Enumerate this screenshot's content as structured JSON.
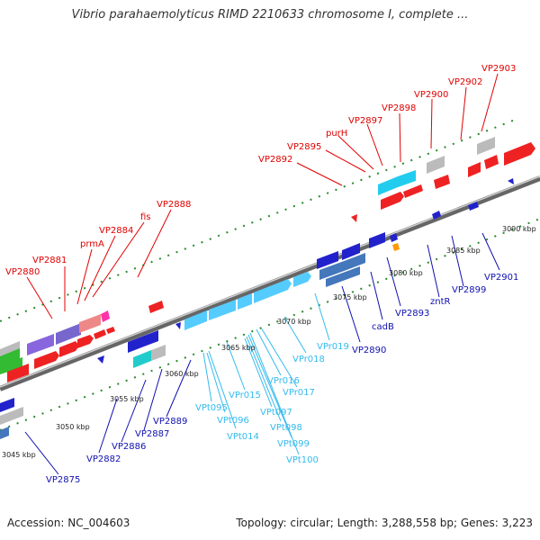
{
  "title": "Vibrio parahaemolyticus RIMD 2210633 chromosome I, complete ...",
  "footer": {
    "accession": "Accession: NC_004603",
    "summary": "Topology: circular; Length: 3,288,558 bp; Genes: 3,223"
  },
  "colors": {
    "upper_labels": "#e00000",
    "lower_labels": "#1010b0",
    "rna_labels": "#33bbee",
    "backbone": "#888888",
    "ticks": "#2a8a2a"
  },
  "scale_ticks": [
    "3045 kbp",
    "3050 kbp",
    "3055 kbp",
    "3060 kbp",
    "3065 kbp",
    "3070 kbp",
    "3075 kbp",
    "3080 kbp",
    "3085 kbp",
    "3090 kbp"
  ],
  "upper_labels": [
    "VP2880",
    "VP2881",
    "prmA",
    "VP2884",
    "fis",
    "VP2888",
    "VP2892",
    "VP2895",
    "purH",
    "VP2897",
    "VP2898",
    "VP2900",
    "VP2902",
    "VP2903"
  ],
  "lower_labels": [
    "VP2875",
    "VP2882",
    "VP2886",
    "VP2887",
    "VP2889",
    "VP2890",
    "cadB",
    "VP2893",
    "zntR",
    "VP2899",
    "VP2901"
  ],
  "rna_labels": [
    "VPt095",
    "VPt096",
    "VPt014",
    "VPr015",
    "VPr016",
    "VPr017",
    "VPt097",
    "VPt098",
    "VPt099",
    "VPt100",
    "VPr018",
    "VPr019"
  ]
}
